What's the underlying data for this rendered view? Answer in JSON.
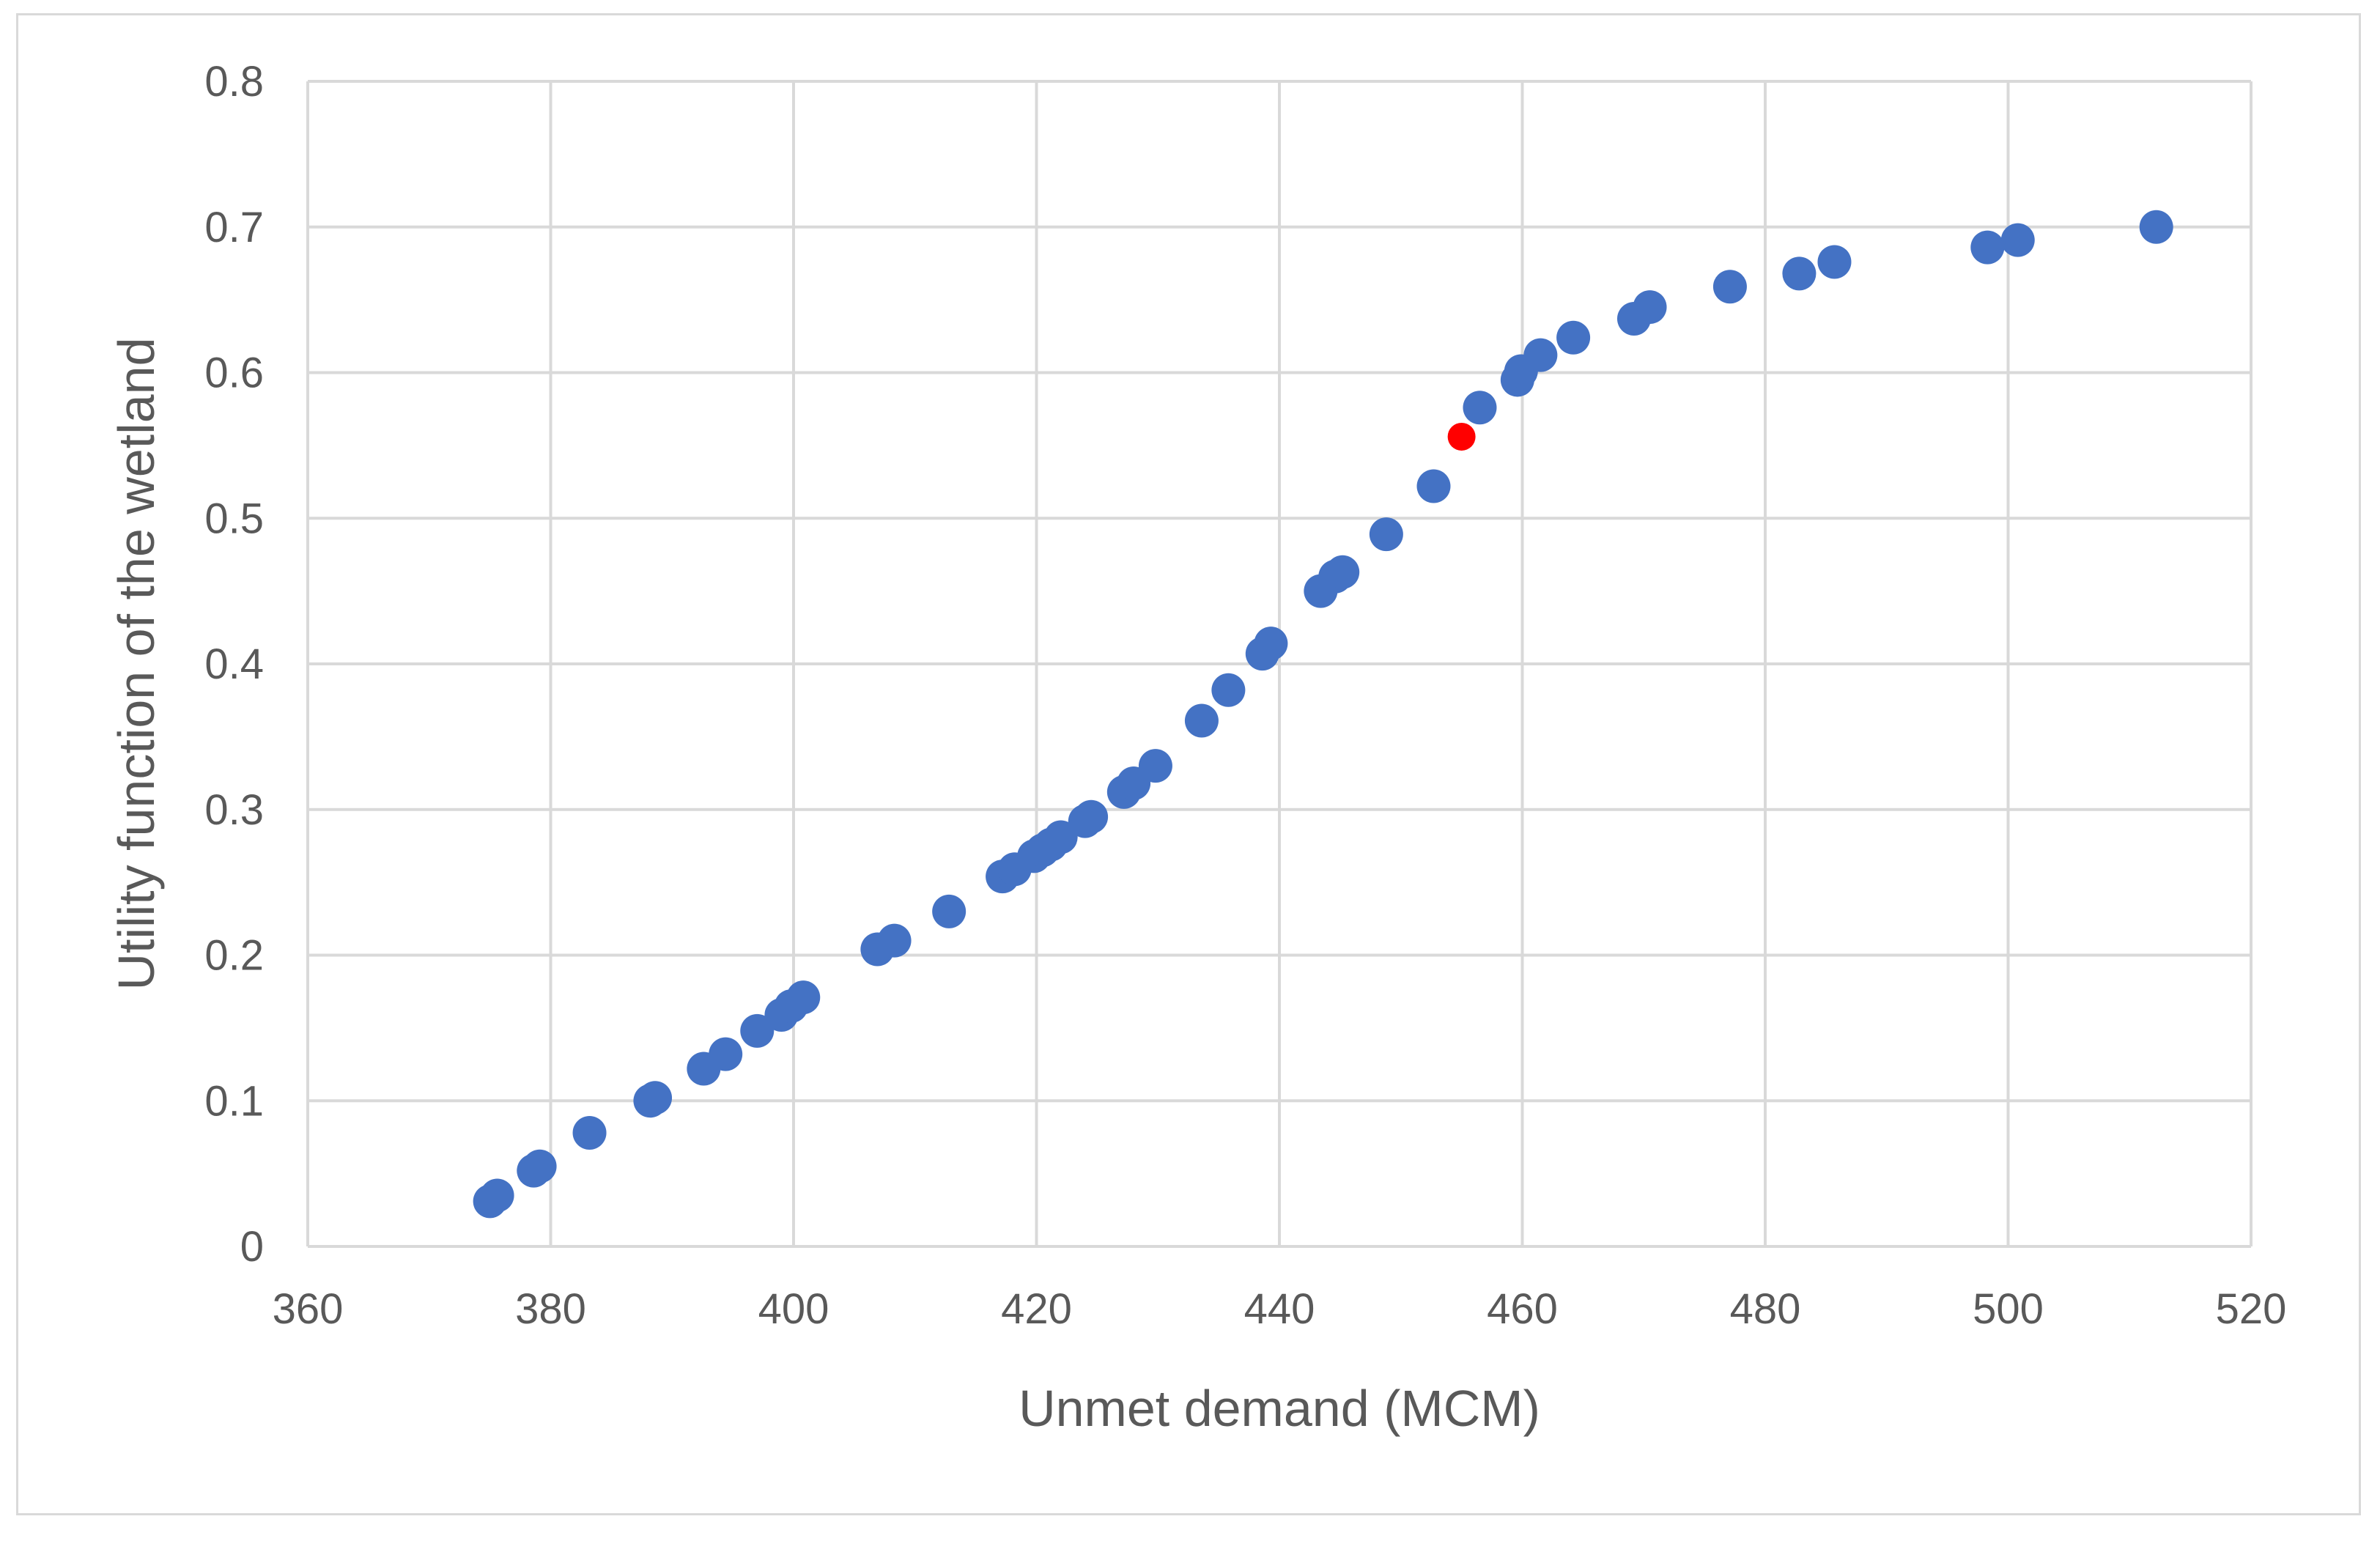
{
  "chart_data": {
    "type": "scatter",
    "title": "",
    "xlabel": "Unmet demand (MCM)",
    "ylabel": "Utility function of the wetland",
    "xlim": [
      360,
      520
    ],
    "ylim": [
      0,
      0.8
    ],
    "x_ticks": [
      360,
      380,
      400,
      420,
      440,
      460,
      480,
      500,
      520
    ],
    "y_ticks": [
      0,
      0.1,
      0.2,
      0.3,
      0.4,
      0.5,
      0.6,
      0.7,
      0.8
    ],
    "x_tick_labels": [
      "360",
      "380",
      "400",
      "420",
      "440",
      "460",
      "480",
      "500",
      "520"
    ],
    "y_tick_labels": [
      "0",
      "0.1",
      "0.2",
      "0.3",
      "0.4",
      "0.5",
      "0.6",
      "0.7",
      "0.8"
    ],
    "grid": true,
    "legend": "none",
    "colors": {
      "series": "#4472c4",
      "highlight": "#ff0000",
      "grid": "#d9d9d9",
      "text": "#595959"
    },
    "series": [
      {
        "color": "#4472c4",
        "points": [
          {
            "x": 375.0,
            "y": 0.031
          },
          {
            "x": 375.6,
            "y": 0.035
          },
          {
            "x": 378.6,
            "y": 0.052
          },
          {
            "x": 379.1,
            "y": 0.055
          },
          {
            "x": 383.2,
            "y": 0.078
          },
          {
            "x": 388.2,
            "y": 0.1
          },
          {
            "x": 388.6,
            "y": 0.102
          },
          {
            "x": 392.6,
            "y": 0.122
          },
          {
            "x": 394.4,
            "y": 0.132
          },
          {
            "x": 397.0,
            "y": 0.148
          },
          {
            "x": 399.0,
            "y": 0.159
          },
          {
            "x": 399.8,
            "y": 0.165
          },
          {
            "x": 400.8,
            "y": 0.171
          },
          {
            "x": 406.9,
            "y": 0.204
          },
          {
            "x": 408.3,
            "y": 0.21
          },
          {
            "x": 412.8,
            "y": 0.23
          },
          {
            "x": 417.2,
            "y": 0.254
          },
          {
            "x": 418.2,
            "y": 0.259
          },
          {
            "x": 419.8,
            "y": 0.268
          },
          {
            "x": 420.5,
            "y": 0.272
          },
          {
            "x": 421.2,
            "y": 0.276
          },
          {
            "x": 422.0,
            "y": 0.281
          },
          {
            "x": 424.0,
            "y": 0.292
          },
          {
            "x": 424.5,
            "y": 0.295
          },
          {
            "x": 427.2,
            "y": 0.312
          },
          {
            "x": 428.0,
            "y": 0.318
          },
          {
            "x": 429.8,
            "y": 0.33
          },
          {
            "x": 433.6,
            "y": 0.361
          },
          {
            "x": 435.8,
            "y": 0.382
          },
          {
            "x": 438.6,
            "y": 0.407
          },
          {
            "x": 439.3,
            "y": 0.414
          },
          {
            "x": 443.4,
            "y": 0.45
          },
          {
            "x": 444.6,
            "y": 0.46
          },
          {
            "x": 445.2,
            "y": 0.463
          },
          {
            "x": 448.8,
            "y": 0.489
          },
          {
            "x": 452.7,
            "y": 0.522
          },
          {
            "x": 456.5,
            "y": 0.576
          },
          {
            "x": 459.6,
            "y": 0.595
          },
          {
            "x": 459.9,
            "y": 0.601
          },
          {
            "x": 461.5,
            "y": 0.612
          },
          {
            "x": 464.2,
            "y": 0.624
          },
          {
            "x": 469.2,
            "y": 0.637
          },
          {
            "x": 470.5,
            "y": 0.645
          },
          {
            "x": 477.1,
            "y": 0.659
          },
          {
            "x": 482.8,
            "y": 0.668
          },
          {
            "x": 485.7,
            "y": 0.676
          },
          {
            "x": 498.3,
            "y": 0.686
          },
          {
            "x": 500.8,
            "y": 0.691
          },
          {
            "x": 512.2,
            "y": 0.7
          }
        ]
      },
      {
        "color": "#ff0000",
        "points": [
          {
            "x": 455.0,
            "y": 0.556
          }
        ]
      }
    ]
  }
}
